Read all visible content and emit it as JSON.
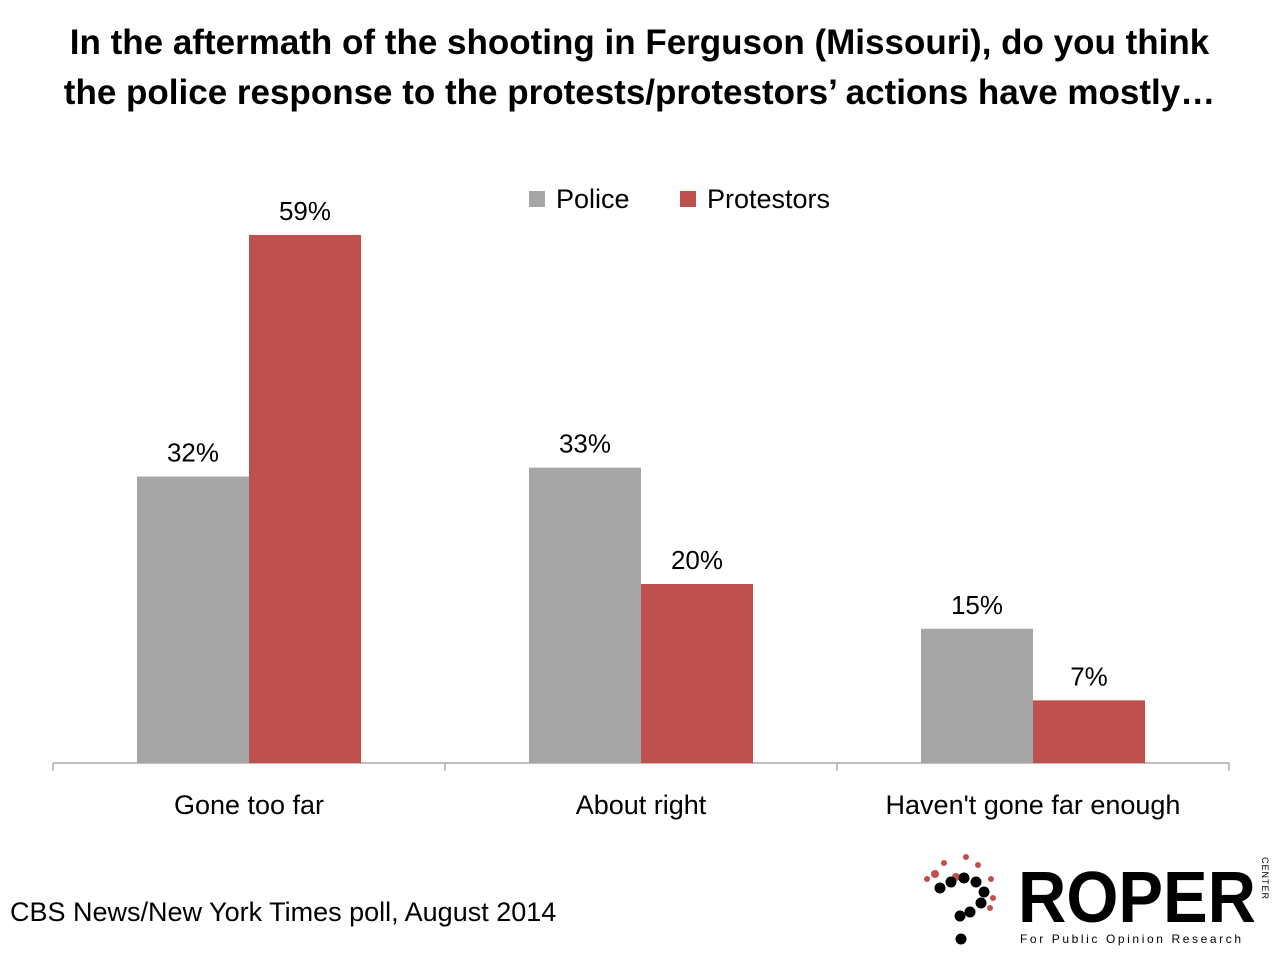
{
  "title_lines": [
    "In the aftermath of the shooting in Ferguson (Missouri), do you think",
    "the police response to the protests/protestors’ actions have mostly…"
  ],
  "source": "CBS News/New York Times poll, August 2014",
  "logo": {
    "name": "ROPER",
    "vertical": "CENTER",
    "tagline": "For Public Opinion Research"
  },
  "colors": {
    "Police": "#a6a6a6",
    "Protestors": "#c0504d",
    "axis": "#999999"
  },
  "chart_data": {
    "type": "bar",
    "title": "In the aftermath of the shooting in Ferguson (Missouri), do you think the police response to the protests/protestors’ actions have mostly…",
    "categories": [
      "Gone too far",
      "About right",
      "Haven't gone far enough"
    ],
    "series": [
      {
        "name": "Police",
        "values": [
          32,
          33,
          15
        ],
        "labels": [
          "32%",
          "33%",
          "15%"
        ]
      },
      {
        "name": "Protestors",
        "values": [
          59,
          20,
          7
        ],
        "labels": [
          "59%",
          "20%",
          "7%"
        ]
      }
    ],
    "value_unit": "%",
    "ylim": [
      0,
      59
    ],
    "legend_position": "top-center",
    "grid": false
  }
}
